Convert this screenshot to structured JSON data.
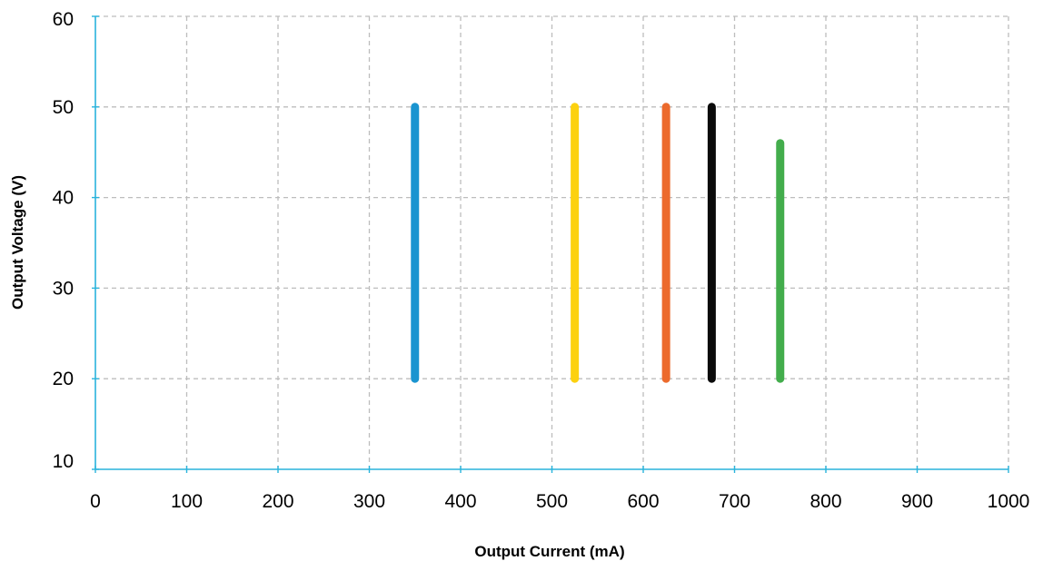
{
  "chart_data": {
    "type": "line",
    "title": "",
    "xlabel": "Output Current (mA)",
    "ylabel": "Output Voltage (V)",
    "xlim": [
      0,
      1000
    ],
    "ylim": [
      10,
      60
    ],
    "x_ticks": [
      0,
      100,
      200,
      300,
      400,
      500,
      600,
      700,
      800,
      900,
      1000
    ],
    "y_ticks": [
      10,
      20,
      30,
      40,
      50,
      60
    ],
    "x_tick_labels": [
      "0",
      "100",
      "200",
      "300",
      "400",
      "500",
      "600",
      "700",
      "800",
      "900",
      "1000"
    ],
    "y_tick_labels": [
      "10",
      "20",
      "30",
      "40",
      "50",
      "60"
    ],
    "grid": true,
    "legend": "none",
    "axis_color": "#29b3dc",
    "grid_color": "#bdbdbd",
    "series": [
      {
        "color": "#1a94d0",
        "x": [
          350,
          350
        ],
        "y": [
          20,
          50
        ]
      },
      {
        "color": "#fcd10f",
        "x": [
          525,
          525
        ],
        "y": [
          20,
          50
        ]
      },
      {
        "color": "#ec6a2c",
        "x": [
          625,
          625
        ],
        "y": [
          20,
          50
        ]
      },
      {
        "color": "#0b0b0b",
        "x": [
          675,
          675
        ],
        "y": [
          20,
          50
        ]
      },
      {
        "color": "#43ad4c",
        "x": [
          750,
          750
        ],
        "y": [
          20,
          46
        ]
      }
    ]
  }
}
